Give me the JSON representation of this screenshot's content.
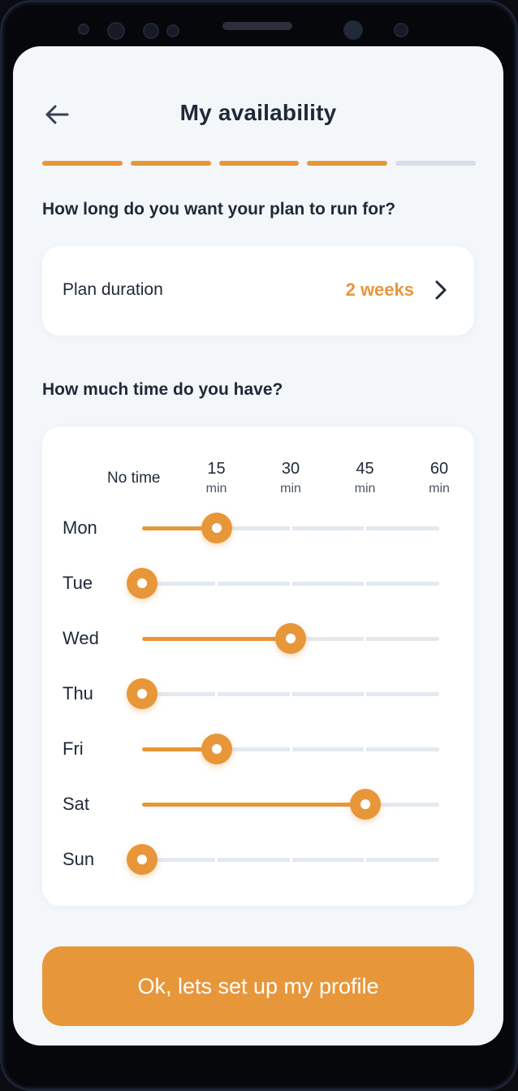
{
  "header": {
    "title": "My availability",
    "back_icon": "arrow-left-icon"
  },
  "progress": {
    "steps_total": 5,
    "steps_completed": 4
  },
  "plan": {
    "question": "How long do you want your plan to run for?",
    "duration_label": "Plan duration",
    "duration_value": "2 weeks"
  },
  "time": {
    "question": "How much time do you have?",
    "no_time_label": "No time",
    "columns": [
      {
        "value": "15",
        "unit": "min"
      },
      {
        "value": "30",
        "unit": "min"
      },
      {
        "value": "45",
        "unit": "min"
      },
      {
        "value": "60",
        "unit": "min"
      }
    ],
    "days": [
      {
        "label": "Mon",
        "minutes": 15
      },
      {
        "label": "Tue",
        "minutes": 0
      },
      {
        "label": "Wed",
        "minutes": 30
      },
      {
        "label": "Thu",
        "minutes": 0
      },
      {
        "label": "Fri",
        "minutes": 15
      },
      {
        "label": "Sat",
        "minutes": 45
      },
      {
        "label": "Sun",
        "minutes": 0
      }
    ]
  },
  "cta": {
    "label": "Ok, lets set up my profile"
  },
  "colors": {
    "accent": "#e8963a",
    "track": "#e3e9ef",
    "text": "#1f2937",
    "background": "#f3f7fa"
  }
}
